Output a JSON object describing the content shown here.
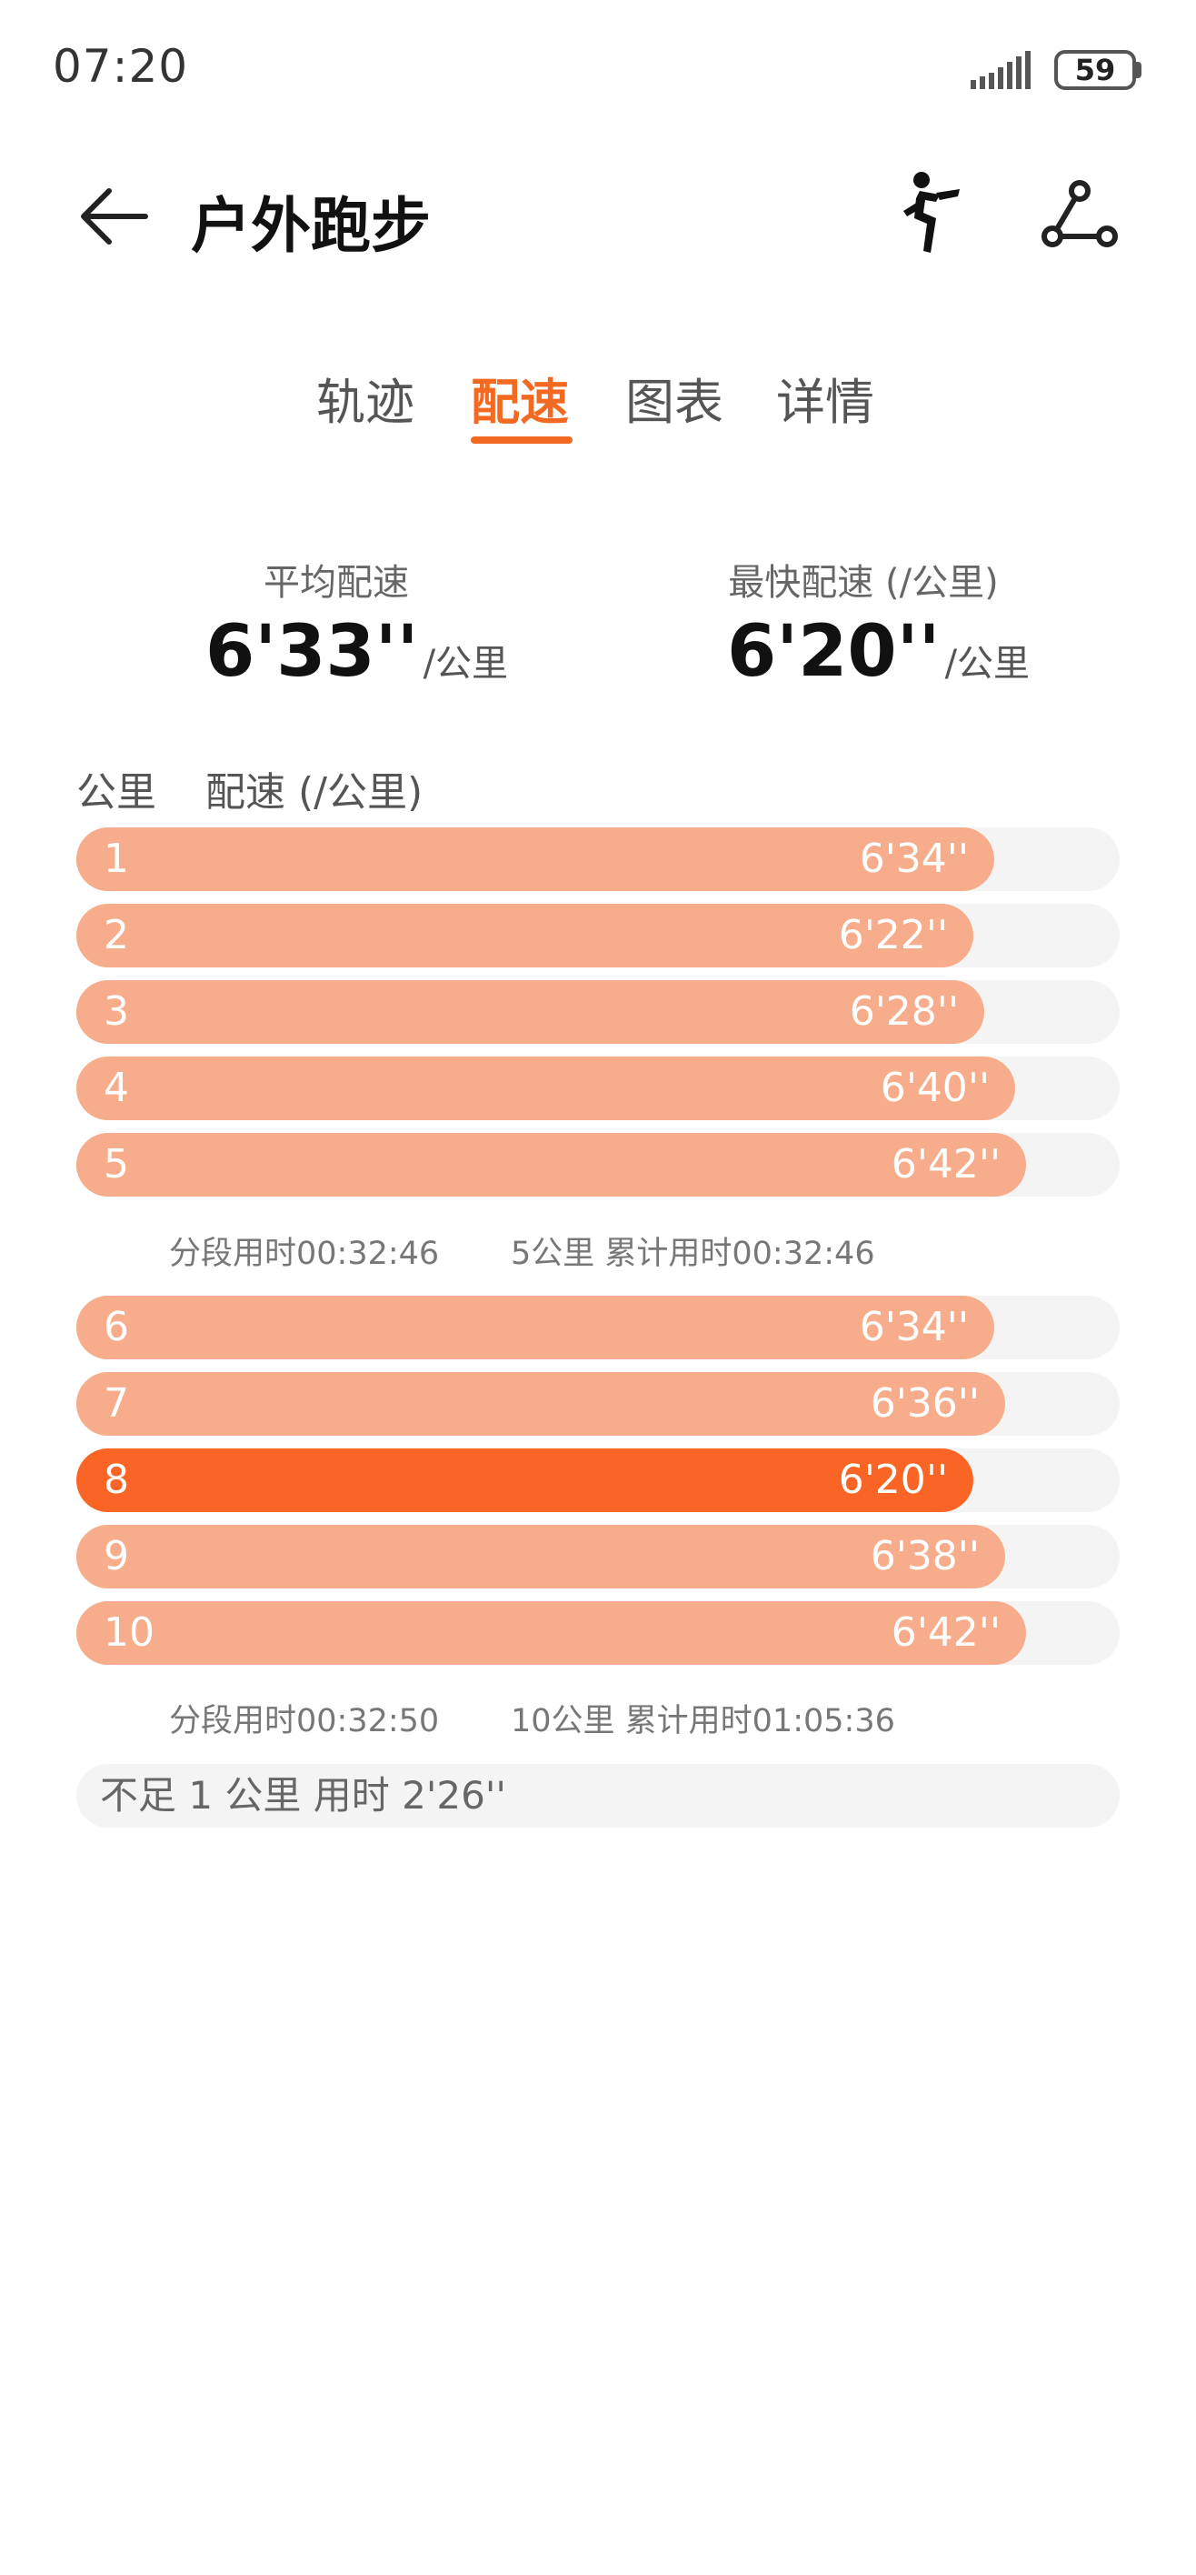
{
  "status_bar": {
    "time": "07:20",
    "battery": "59"
  },
  "header": {
    "title": "户外跑步"
  },
  "tabs": [
    {
      "label": "轨迹",
      "active": false
    },
    {
      "label": "配速",
      "active": true
    },
    {
      "label": "图表",
      "active": false
    },
    {
      "label": "详情",
      "active": false
    }
  ],
  "summary": {
    "avg": {
      "label": "平均配速",
      "value": "6'33''",
      "unit": "/公里"
    },
    "fastest": {
      "label": "最快配速 (/公里)",
      "value": "6'20''",
      "unit": "/公里"
    }
  },
  "table": {
    "col_km": "公里",
    "col_pace": "配速 (/公里)",
    "rows": [
      {
        "km": "1",
        "pace": "6'34''",
        "fill": 0.88
      },
      {
        "km": "2",
        "pace": "6'22''",
        "fill": 0.86
      },
      {
        "km": "3",
        "pace": "6'28''",
        "fill": 0.87
      },
      {
        "km": "4",
        "pace": "6'40''",
        "fill": 0.9
      },
      {
        "km": "5",
        "pace": "6'42''",
        "fill": 0.91
      },
      {
        "km": "6",
        "pace": "6'34''",
        "fill": 0.88
      },
      {
        "km": "7",
        "pace": "6'36''",
        "fill": 0.89
      },
      {
        "km": "8",
        "pace": "6'20''",
        "fill": 0.86,
        "best": true
      },
      {
        "km": "9",
        "pace": "6'38''",
        "fill": 0.89
      },
      {
        "km": "10",
        "pace": "6'42''",
        "fill": 0.91
      }
    ],
    "splits": [
      {
        "segment": "分段用时00:32:46",
        "cumulative": "5公里 累计用时00:32:46"
      },
      {
        "segment": "分段用时00:32:50",
        "cumulative": "10公里 累计用时01:05:36"
      }
    ],
    "remainder": "不足 1 公里 用时 2'26''"
  },
  "colors": {
    "accent": "#f26a22",
    "bar": "#f7ad8b",
    "best_bar": "#fa6525",
    "track": "#f4f4f4"
  }
}
